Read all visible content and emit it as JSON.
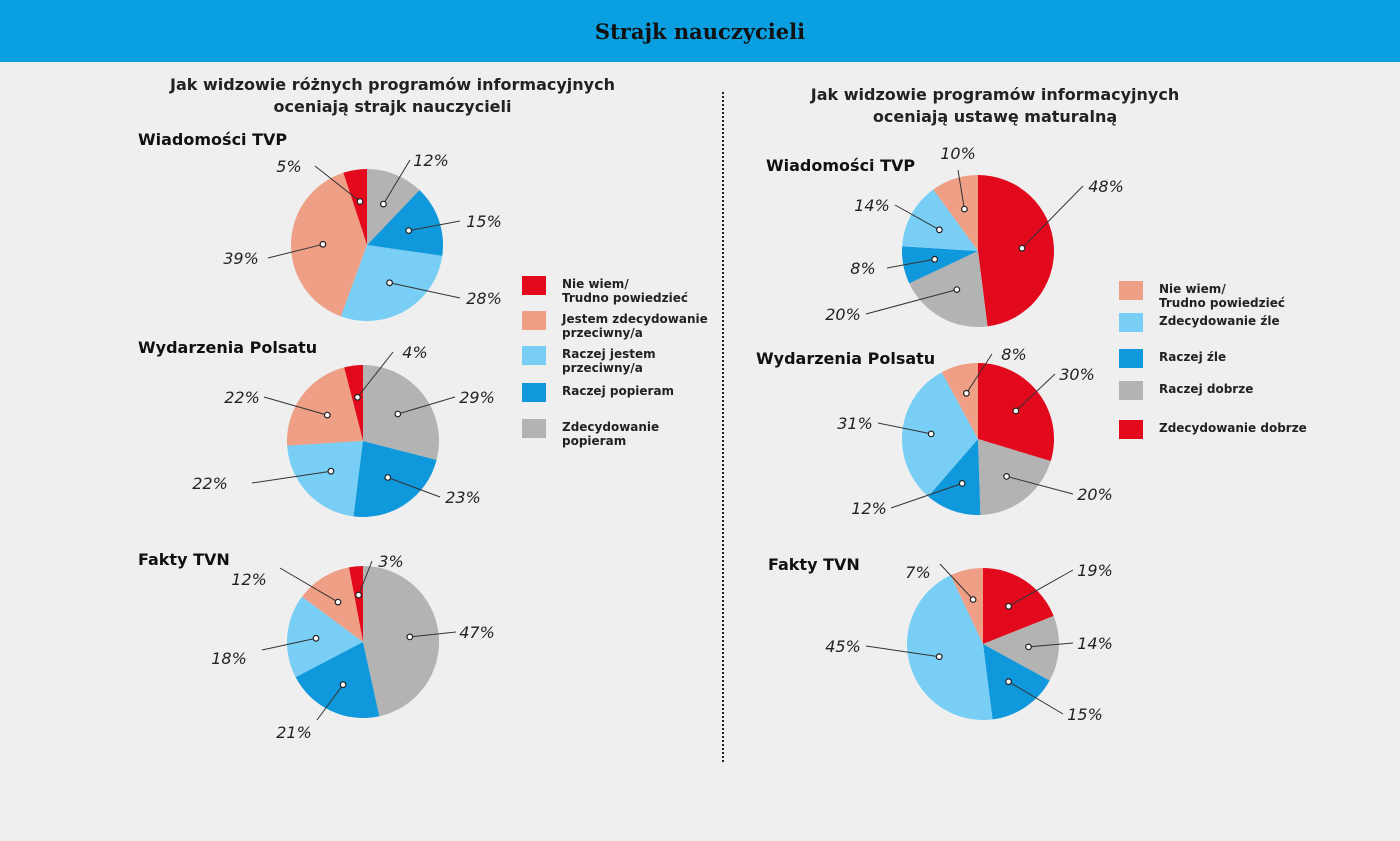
{
  "header": {
    "title": "Strajk nauczycieli"
  },
  "colors": {
    "red": "#e2091d",
    "salmon": "#ee9f85",
    "lightblue": "#78cef4",
    "blue": "#1098dc",
    "gray": "#b3b3b3",
    "header": "#0a9fe0"
  },
  "left_panel": {
    "title_line1": "Jak widzowie różnych programów informacyjnych",
    "title_line2": "oceniają strajk nauczycieli",
    "legend": [
      {
        "label": "Nie wiem/\nTrudno powiedzieć",
        "color": "#e2091d"
      },
      {
        "label": "Jestem zdecydowanie\nprzeciwny/a",
        "color": "#ee9f85"
      },
      {
        "label": "Raczej jestem\nprzeciwny/a",
        "color": "#78cef4"
      },
      {
        "label": "Raczej popieram",
        "color": "#1098dc"
      },
      {
        "label": "Zdecydowanie\npopieram",
        "color": "#b3b3b3"
      }
    ]
  },
  "right_panel": {
    "title_line1": "Jak widzowie programów informacyjnych",
    "title_line2": "oceniają ustawę maturalną",
    "legend": [
      {
        "label": "Nie wiem/\nTrudno powiedzieć",
        "color": "#ee9f85"
      },
      {
        "label": "Zdecydowanie źle",
        "color": "#78cef4"
      },
      {
        "label": "Raczej źle",
        "color": "#1098dc"
      },
      {
        "label": "Raczej dobrze",
        "color": "#b3b3b3"
      },
      {
        "label": "Zdecydowanie dobrze",
        "color": "#e2091d"
      }
    ]
  },
  "chart_data": [
    {
      "type": "pie",
      "title": "Wiadomości TVP",
      "categories": [
        "Nie wiem/Trudno powiedzieć",
        "Jestem zdecydowanie przeciwny/a",
        "Raczej jestem przeciwny/a",
        "Raczej popieram",
        "Zdecydowanie popieram"
      ],
      "values": [
        5,
        39,
        28,
        15,
        12
      ],
      "labels": [
        "5%",
        "39%",
        "28%",
        "15%",
        "12%"
      ],
      "direction": "counterclockwise",
      "colors": [
        "#e2091d",
        "#ee9f85",
        "#78cef4",
        "#1098dc",
        "#b3b3b3"
      ]
    },
    {
      "type": "pie",
      "title": "Wydarzenia Polsatu",
      "categories": [
        "Nie wiem/Trudno powiedzieć",
        "Jestem zdecydowanie przeciwny/a",
        "Raczej jestem przeciwny/a",
        "Raczej popieram",
        "Zdecydowanie popieram"
      ],
      "values": [
        4,
        22,
        22,
        23,
        29
      ],
      "labels": [
        "4%",
        "22%",
        "22%",
        "23%",
        "29%"
      ],
      "direction": "counterclockwise",
      "colors": [
        "#e2091d",
        "#ee9f85",
        "#78cef4",
        "#1098dc",
        "#b3b3b3"
      ]
    },
    {
      "type": "pie",
      "title": "Fakty TVN",
      "categories": [
        "Nie wiem/Trudno powiedzieć",
        "Jestem zdecydowanie przeciwny/a",
        "Raczej jestem przeciwny/a",
        "Raczej popieram",
        "Zdecydowanie popieram"
      ],
      "values": [
        3,
        12,
        18,
        21,
        47
      ],
      "labels": [
        "3%",
        "12%",
        "18%",
        "21%",
        "47%"
      ],
      "direction": "counterclockwise",
      "colors": [
        "#e2091d",
        "#ee9f85",
        "#78cef4",
        "#1098dc",
        "#b3b3b3"
      ]
    },
    {
      "type": "pie",
      "title": "Wiadomości TVP",
      "categories": [
        "Zdecydowanie dobrze",
        "Raczej dobrze",
        "Raczej źle",
        "Zdecydowanie źle",
        "Nie wiem/Trudno powiedzieć"
      ],
      "values": [
        48,
        20,
        8,
        14,
        10
      ],
      "labels": [
        "48%",
        "20%",
        "8%",
        "14%",
        "10%"
      ],
      "direction": "clockwise",
      "colors": [
        "#e2091d",
        "#b3b3b3",
        "#1098dc",
        "#78cef4",
        "#ee9f85"
      ]
    },
    {
      "type": "pie",
      "title": "Wydarzenia Polsatu",
      "categories": [
        "Zdecydowanie dobrze",
        "Raczej dobrze",
        "Raczej źle",
        "Zdecydowanie źle",
        "Nie wiem/Trudno powiedzieć"
      ],
      "values": [
        30,
        20,
        12,
        31,
        8
      ],
      "labels": [
        "30%",
        "20%",
        "12%",
        "31%",
        "8%"
      ],
      "direction": "clockwise",
      "colors": [
        "#e2091d",
        "#b3b3b3",
        "#1098dc",
        "#78cef4",
        "#ee9f85"
      ]
    },
    {
      "type": "pie",
      "title": "Fakty TVN",
      "categories": [
        "Zdecydowanie dobrze",
        "Raczej dobrze",
        "Raczej źle",
        "Zdecydowanie źle",
        "Nie wiem/Trudno powiedzieć"
      ],
      "values": [
        19,
        14,
        15,
        45,
        7
      ],
      "labels": [
        "19%",
        "14%",
        "15%",
        "45%",
        "7%"
      ],
      "direction": "clockwise",
      "colors": [
        "#e2091d",
        "#b3b3b3",
        "#1098dc",
        "#78cef4",
        "#ee9f85"
      ]
    }
  ]
}
